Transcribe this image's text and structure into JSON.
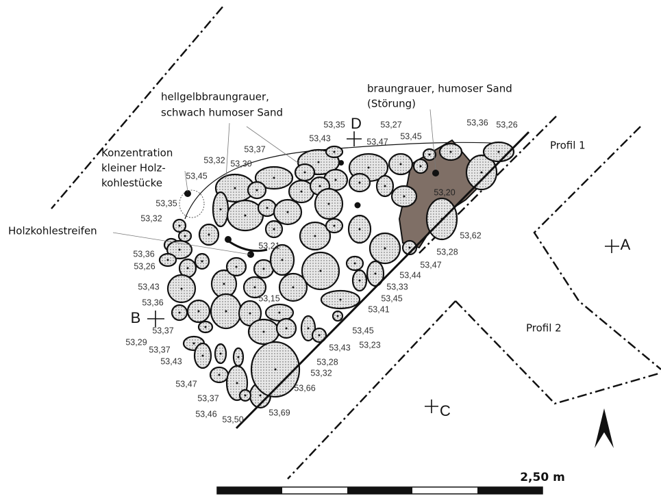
{
  "labels": {
    "sand_light": [
      "hellgelbbraungrauer,",
      "schwach humoser Sand"
    ],
    "disturbance": [
      "braungrauer, humoser Sand",
      "(Störung)"
    ],
    "charcoal_concentration": [
      "Konzentration",
      "kleiner Holz-",
      "kohlestücke"
    ],
    "charcoal_streak": "Holzkohlestreifen",
    "profile_1": "Profil 1",
    "profile_2": "Profil 2"
  },
  "points": {
    "A": "A",
    "B": "B",
    "C": "C",
    "D": "D"
  },
  "scale": "2,50 m",
  "elevations": [
    "53,35",
    "53,43",
    "53,27",
    "53,47",
    "53,45",
    "53,36",
    "53,26",
    "53,37",
    "53,32",
    "53,30",
    "53,45",
    "53,35",
    "53,32",
    "53,21",
    "53,36",
    "53,26",
    "53,43",
    "53,36",
    "53,15",
    "53,37",
    "53,29",
    "53,37",
    "53,43",
    "53,47",
    "53,37",
    "53,46",
    "53,50",
    "53,69",
    "53,66",
    "53,32",
    "53,28",
    "53,43",
    "53,23",
    "53,45",
    "53,41",
    "53,45",
    "53,33",
    "53,44",
    "53,47",
    "53,28",
    "53,62",
    "53,20"
  ]
}
